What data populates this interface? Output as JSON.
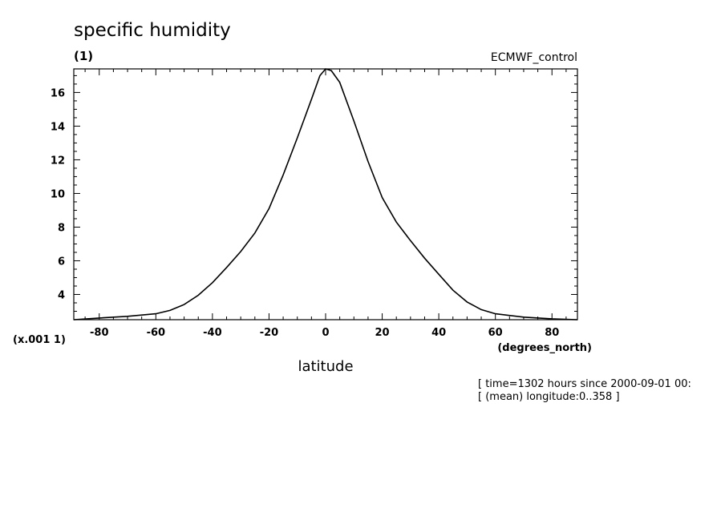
{
  "chart_data": {
    "type": "line",
    "title": "specific humidity",
    "units_label": "(1)",
    "dataset_label": "ECMWF_control",
    "xlabel": "latitude",
    "x_units_label": "(degrees_north)",
    "y_scale_label": "(x.001 1)",
    "xlim": [
      -89,
      89
    ],
    "ylim": [
      2.5,
      17.4
    ],
    "x_ticks": [
      -80,
      -60,
      -40,
      -20,
      0,
      20,
      40,
      60,
      80
    ],
    "x_tick_labels": [
      "-80",
      "-60",
      "-40",
      "-20",
      "0",
      "20",
      "40",
      "60",
      "80"
    ],
    "y_ticks": [
      4,
      6,
      8,
      10,
      12,
      14,
      16
    ],
    "y_tick_labels": [
      "4",
      "6",
      "8",
      "10",
      "12",
      "14",
      "16"
    ],
    "grid": false,
    "series": [
      {
        "x": [
          -89,
          -80,
          -70,
          -60,
          -55,
          -50,
          -45,
          -40,
          -35,
          -30,
          -25,
          -20,
          -15,
          -10,
          -5,
          -2,
          0,
          2,
          5,
          10,
          15,
          20,
          25,
          30,
          35,
          40,
          45,
          50,
          55,
          60,
          70,
          80,
          89
        ],
        "y": [
          2.5,
          2.6,
          2.7,
          2.85,
          3.05,
          3.4,
          3.95,
          4.7,
          5.6,
          6.55,
          7.65,
          9.1,
          11.1,
          13.3,
          15.6,
          17.0,
          17.4,
          17.3,
          16.6,
          14.3,
          11.9,
          9.75,
          8.3,
          7.2,
          6.15,
          5.2,
          4.25,
          3.55,
          3.1,
          2.85,
          2.65,
          2.55,
          2.5
        ]
      }
    ],
    "notes": [
      "[ time=1302 hours since 2000-09-01 00:",
      "[ (mean) longitude:0..358 ]"
    ]
  }
}
